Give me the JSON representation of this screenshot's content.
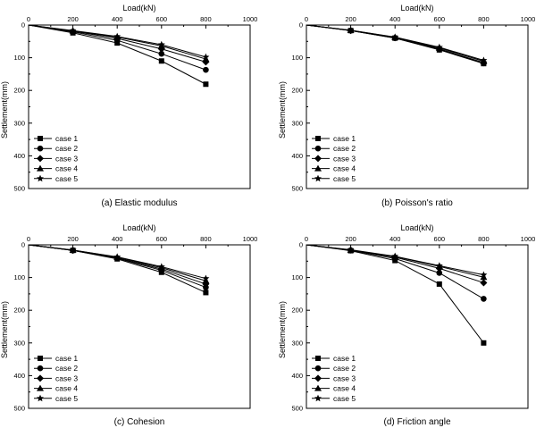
{
  "chart_data": [
    {
      "type": "line",
      "caption": "(a) Elastic modulus",
      "xlabel": "Load(kN)",
      "ylabel": "Settlement(mm)",
      "xlim": [
        0,
        1000
      ],
      "ylim": [
        0,
        500
      ],
      "y_inverted": true,
      "x_axis_position": "top",
      "xticks": [
        "0",
        "200",
        "400",
        "600",
        "800",
        "1000"
      ],
      "yticks": [
        "0",
        "100",
        "200",
        "300",
        "400",
        "500"
      ],
      "legend_position": "bottom-left",
      "x": [
        0,
        200,
        400,
        600,
        800
      ],
      "series": [
        {
          "name": "case 1",
          "marker": "square",
          "values": [
            0,
            24,
            55,
            110,
            181
          ]
        },
        {
          "name": "case 2",
          "marker": "circle",
          "values": [
            0,
            21,
            47,
            88,
            137
          ]
        },
        {
          "name": "case 3",
          "marker": "diamond",
          "values": [
            0,
            19,
            41,
            73,
            113
          ]
        },
        {
          "name": "case 4",
          "marker": "triangle",
          "values": [
            0,
            18,
            37,
            64,
            104
          ]
        },
        {
          "name": "case 5",
          "marker": "star",
          "values": [
            0,
            17,
            35,
            60,
            98
          ]
        }
      ]
    },
    {
      "type": "line",
      "caption": "(b) Poisson's ratio",
      "xlabel": "Load(kN)",
      "ylabel": "Settlement(mm)",
      "xlim": [
        0,
        1000
      ],
      "ylim": [
        0,
        500
      ],
      "y_inverted": true,
      "x_axis_position": "top",
      "xticks": [
        "0",
        "200",
        "400",
        "600",
        "800",
        "1000"
      ],
      "yticks": [
        "0",
        "100",
        "200",
        "300",
        "400",
        "500"
      ],
      "legend_position": "bottom-left",
      "x": [
        0,
        200,
        400,
        600,
        800
      ],
      "series": [
        {
          "name": "case 1",
          "marker": "square",
          "values": [
            0,
            17,
            40,
            76,
            118
          ]
        },
        {
          "name": "case 2",
          "marker": "circle",
          "values": [
            0,
            17,
            40,
            75,
            117
          ]
        },
        {
          "name": "case 3",
          "marker": "diamond",
          "values": [
            0,
            17,
            39,
            73,
            115
          ]
        },
        {
          "name": "case 4",
          "marker": "triangle",
          "values": [
            0,
            16,
            38,
            70,
            111
          ]
        },
        {
          "name": "case 5",
          "marker": "star",
          "values": [
            0,
            16,
            37,
            68,
            108
          ]
        }
      ]
    },
    {
      "type": "line",
      "caption": "(c) Cohesion",
      "xlabel": "Load(kN)",
      "ylabel": "Settlement(mm)",
      "xlim": [
        0,
        1000
      ],
      "ylim": [
        0,
        500
      ],
      "y_inverted": true,
      "x_axis_position": "top",
      "xticks": [
        "0",
        "200",
        "400",
        "600",
        "800",
        "1000"
      ],
      "yticks": [
        "0",
        "100",
        "200",
        "300",
        "400",
        "500"
      ],
      "legend_position": "bottom-left",
      "x": [
        0,
        200,
        400,
        600,
        800
      ],
      "series": [
        {
          "name": "case 1",
          "marker": "square",
          "values": [
            0,
            17,
            43,
            84,
            146
          ]
        },
        {
          "name": "case 2",
          "marker": "circle",
          "values": [
            0,
            17,
            41,
            78,
            130
          ]
        },
        {
          "name": "case 3",
          "marker": "diamond",
          "values": [
            0,
            17,
            40,
            74,
            120
          ]
        },
        {
          "name": "case 4",
          "marker": "triangle",
          "values": [
            0,
            16,
            38,
            70,
            110
          ]
        },
        {
          "name": "case 5",
          "marker": "star",
          "values": [
            0,
            16,
            37,
            67,
            103
          ]
        }
      ]
    },
    {
      "type": "line",
      "caption": "(d) Friction angle",
      "xlabel": "Load(kN)",
      "ylabel": "Settlement(mm)",
      "xlim": [
        0,
        1000
      ],
      "ylim": [
        0,
        500
      ],
      "y_inverted": true,
      "x_axis_position": "top",
      "xticks": [
        "0",
        "200",
        "400",
        "600",
        "800",
        "1000"
      ],
      "yticks": [
        "0",
        "100",
        "200",
        "300",
        "400",
        "500"
      ],
      "legend_position": "bottom-left",
      "x": [
        0,
        200,
        400,
        600,
        800
      ],
      "series": [
        {
          "name": "case 1",
          "marker": "square",
          "values": [
            0,
            18,
            48,
            120,
            300
          ]
        },
        {
          "name": "case 2",
          "marker": "circle",
          "values": [
            0,
            17,
            42,
            86,
            165
          ]
        },
        {
          "name": "case 3",
          "marker": "diamond",
          "values": [
            0,
            16,
            38,
            72,
            116
          ]
        },
        {
          "name": "case 4",
          "marker": "triangle",
          "values": [
            0,
            16,
            36,
            66,
            99
          ]
        },
        {
          "name": "case 5",
          "marker": "star",
          "values": [
            0,
            15,
            35,
            64,
            92
          ]
        }
      ]
    }
  ]
}
